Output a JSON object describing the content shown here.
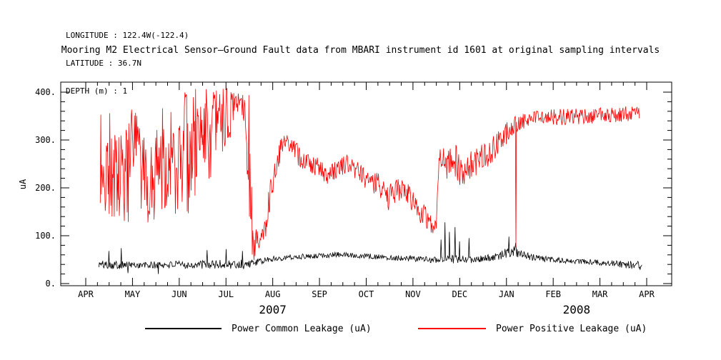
{
  "meta": {
    "longitude": "LONGITUDE : 122.4W(-122.4)",
    "latitude": "LATITUDE : 36.7N",
    "depth": "DEPTH (m) : 1"
  },
  "chart_data": {
    "type": "line",
    "title": "Mooring M2 Electrical Sensor–Ground Fault data from MBARI instrument id 1601 at original sampling intervals",
    "xlabel": "",
    "ylabel": "uA",
    "ylim": [
      0,
      420
    ],
    "grid": false,
    "legend_position": "bottom",
    "yticks": [
      0,
      100,
      200,
      300,
      400
    ],
    "ytick_labels": [
      "0.",
      "100.",
      "200.",
      "300.",
      "400."
    ],
    "x_months": [
      "APR",
      "MAY",
      "JUN",
      "JUL",
      "AUG",
      "SEP",
      "OCT",
      "NOV",
      "DEC",
      "JAN",
      "FEB",
      "MAR",
      "APR"
    ],
    "year_labels": [
      {
        "label": "2007",
        "center_month": 4
      },
      {
        "label": "2008",
        "center_month": 10.5
      }
    ],
    "series": [
      {
        "name": "Power Common Leakage (uA)",
        "color": "#000000",
        "envelope": [
          [
            0.28,
            32,
            48
          ],
          [
            0.6,
            30,
            48
          ],
          [
            1.0,
            32,
            46
          ],
          [
            1.4,
            30,
            46
          ],
          [
            1.8,
            32,
            47
          ],
          [
            2.2,
            31,
            47
          ],
          [
            2.6,
            31,
            49
          ],
          [
            3.0,
            29,
            50
          ],
          [
            3.3,
            27,
            52
          ],
          [
            3.5,
            33,
            50
          ],
          [
            3.7,
            38,
            52
          ],
          [
            3.9,
            44,
            56
          ],
          [
            4.2,
            48,
            60
          ],
          [
            4.6,
            51,
            62
          ],
          [
            5.0,
            53,
            64
          ],
          [
            5.4,
            55,
            66
          ],
          [
            5.7,
            54,
            65
          ],
          [
            6.0,
            52,
            63
          ],
          [
            6.3,
            50,
            61
          ],
          [
            6.6,
            48,
            60
          ],
          [
            7.0,
            46,
            58
          ],
          [
            7.3,
            44,
            57
          ],
          [
            7.6,
            42,
            58
          ],
          [
            7.9,
            41,
            60
          ],
          [
            8.2,
            42,
            58
          ],
          [
            8.5,
            44,
            59
          ],
          [
            8.8,
            48,
            64
          ],
          [
            9.0,
            54,
            74
          ],
          [
            9.15,
            56,
            78
          ],
          [
            9.3,
            52,
            70
          ],
          [
            9.5,
            48,
            64
          ],
          [
            9.8,
            45,
            58
          ],
          [
            10.2,
            42,
            54
          ],
          [
            10.6,
            40,
            52
          ],
          [
            11.0,
            38,
            50
          ],
          [
            11.3,
            36,
            48
          ],
          [
            11.6,
            30,
            48
          ],
          [
            11.9,
            28,
            46
          ]
        ],
        "spikes": [
          [
            0.5,
            68
          ],
          [
            0.76,
            74
          ],
          [
            0.9,
            22
          ],
          [
            1.55,
            20
          ],
          [
            2.6,
            70
          ],
          [
            3.0,
            72
          ],
          [
            3.35,
            68
          ],
          [
            7.6,
            92
          ],
          [
            7.68,
            128
          ],
          [
            7.78,
            108
          ],
          [
            7.9,
            118
          ],
          [
            8.0,
            88
          ],
          [
            8.2,
            95
          ],
          [
            9.05,
            98
          ],
          [
            9.2,
            85
          ]
        ]
      },
      {
        "name": "Power Positive Leakage (uA)",
        "color": "#ff0000",
        "envelope": [
          [
            0.31,
            140,
            360
          ],
          [
            0.5,
            115,
            375
          ],
          [
            0.7,
            120,
            310
          ],
          [
            0.9,
            115,
            340
          ],
          [
            1.05,
            200,
            390
          ],
          [
            1.2,
            130,
            330
          ],
          [
            1.35,
            120,
            250
          ],
          [
            1.5,
            130,
            390
          ],
          [
            1.65,
            150,
            400
          ],
          [
            1.8,
            130,
            380
          ],
          [
            1.95,
            140,
            300
          ],
          [
            2.1,
            150,
            400
          ],
          [
            2.25,
            130,
            408
          ],
          [
            2.4,
            200,
            408
          ],
          [
            2.55,
            250,
            410
          ],
          [
            2.7,
            160,
            410
          ],
          [
            2.85,
            300,
            410
          ],
          [
            3.0,
            250,
            410
          ],
          [
            3.15,
            330,
            412
          ],
          [
            3.3,
            360,
            412
          ],
          [
            3.42,
            320,
            408
          ],
          [
            3.5,
            100,
            400
          ],
          [
            3.58,
            45,
            120
          ],
          [
            3.7,
            55,
            110
          ],
          [
            3.82,
            80,
            140
          ],
          [
            3.95,
            150,
            230
          ],
          [
            4.1,
            235,
            290
          ],
          [
            4.25,
            280,
            315
          ],
          [
            4.4,
            270,
            310
          ],
          [
            4.55,
            245,
            290
          ],
          [
            4.7,
            235,
            275
          ],
          [
            4.85,
            230,
            270
          ],
          [
            5.0,
            220,
            260
          ],
          [
            5.15,
            205,
            245
          ],
          [
            5.3,
            215,
            255
          ],
          [
            5.45,
            225,
            265
          ],
          [
            5.6,
            230,
            270
          ],
          [
            5.75,
            220,
            262
          ],
          [
            5.9,
            205,
            250
          ],
          [
            6.05,
            195,
            240
          ],
          [
            6.2,
            185,
            235
          ],
          [
            6.35,
            175,
            225
          ],
          [
            6.5,
            150,
            210
          ],
          [
            6.65,
            175,
            220
          ],
          [
            6.8,
            170,
            215
          ],
          [
            6.95,
            155,
            205
          ],
          [
            7.1,
            130,
            185
          ],
          [
            7.25,
            120,
            170
          ],
          [
            7.4,
            105,
            145
          ],
          [
            7.5,
            100,
            135
          ],
          [
            7.55,
            230,
            310
          ],
          [
            7.7,
            215,
            280
          ],
          [
            7.85,
            235,
            310
          ],
          [
            8.0,
            200,
            265
          ],
          [
            8.15,
            210,
            270
          ],
          [
            8.3,
            220,
            285
          ],
          [
            8.5,
            235,
            295
          ],
          [
            8.7,
            250,
            310
          ],
          [
            8.9,
            268,
            330
          ],
          [
            9.1,
            298,
            345
          ],
          [
            9.3,
            318,
            355
          ],
          [
            9.5,
            330,
            360
          ],
          [
            9.7,
            336,
            362
          ],
          [
            10.0,
            330,
            364
          ],
          [
            10.4,
            332,
            366
          ],
          [
            10.8,
            334,
            366
          ],
          [
            11.2,
            336,
            368
          ],
          [
            11.5,
            338,
            370
          ],
          [
            11.85,
            342,
            372
          ]
        ],
        "spikes": [
          [
            9.2,
            75
          ]
        ]
      }
    ]
  }
}
